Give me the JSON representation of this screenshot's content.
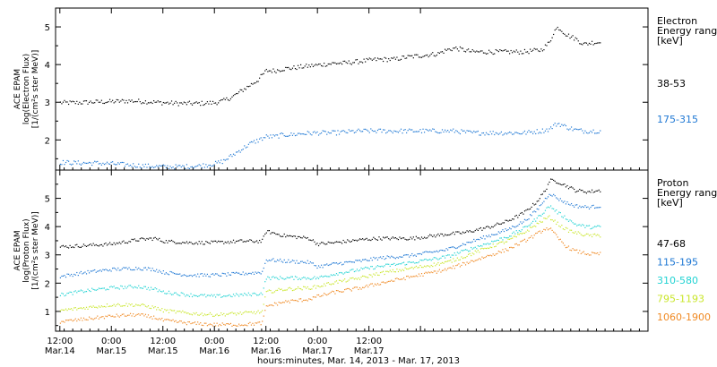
{
  "chart_data": [
    {
      "type": "scatter",
      "ylabel_lines": [
        "ACE EPAM",
        "log(Electron Flux)",
        "[1/(cm²s ster MeV)]"
      ],
      "ylim": [
        1.2,
        5.5
      ],
      "yticks": [
        2,
        3,
        4,
        5
      ],
      "legend": {
        "title_lines": [
          "Electron",
          "Energy range",
          "[keV]"
        ]
      },
      "series": [
        {
          "name": "38-53",
          "color": "#000000",
          "x_hours": [
            0,
            4,
            8,
            12,
            16,
            20,
            24,
            28,
            32,
            36,
            38,
            40,
            42,
            44,
            46,
            48,
            50,
            52,
            54,
            56,
            60,
            64,
            66,
            70,
            74,
            78,
            80,
            84,
            88,
            90,
            92,
            94,
            96,
            100,
            104,
            108,
            112,
            114,
            115,
            116,
            118,
            120,
            122,
            124,
            126
          ],
          "values": [
            3.0,
            3.0,
            3.02,
            3.03,
            3.05,
            3.03,
            3.0,
            2.98,
            2.98,
            3.0,
            3.05,
            3.15,
            3.3,
            3.45,
            3.6,
            3.85,
            3.85,
            3.9,
            3.92,
            3.95,
            4.0,
            4.05,
            4.05,
            4.1,
            4.15,
            4.15,
            4.2,
            4.25,
            4.3,
            4.4,
            4.45,
            4.4,
            4.35,
            4.35,
            4.35,
            4.35,
            4.4,
            4.6,
            4.9,
            5.0,
            4.8,
            4.7,
            4.55,
            4.6,
            4.6
          ]
        },
        {
          "name": "175-315",
          "color": "#1f78d4",
          "x_hours": [
            0,
            4,
            8,
            12,
            16,
            20,
            24,
            28,
            32,
            36,
            38,
            40,
            42,
            44,
            46,
            48,
            50,
            52,
            54,
            56,
            60,
            64,
            66,
            70,
            74,
            78,
            80,
            84,
            88,
            90,
            92,
            94,
            96,
            100,
            104,
            108,
            112,
            114,
            115,
            116,
            118,
            120,
            122,
            124,
            126
          ],
          "values": [
            1.42,
            1.4,
            1.4,
            1.38,
            1.35,
            1.32,
            1.3,
            1.3,
            1.32,
            1.38,
            1.45,
            1.6,
            1.75,
            1.9,
            2.0,
            2.1,
            2.1,
            2.15,
            2.15,
            2.18,
            2.2,
            2.2,
            2.22,
            2.25,
            2.25,
            2.25,
            2.25,
            2.25,
            2.25,
            2.25,
            2.25,
            2.22,
            2.2,
            2.2,
            2.2,
            2.2,
            2.25,
            2.3,
            2.4,
            2.45,
            2.35,
            2.28,
            2.25,
            2.25,
            2.25
          ]
        }
      ]
    },
    {
      "type": "scatter",
      "ylabel_lines": [
        "ACE EPAM",
        "log(Proton Flux)",
        "[1/(cm²s ster MeV)]"
      ],
      "ylim": [
        0.3,
        6.0
      ],
      "yticks": [
        1,
        2,
        3,
        4,
        5
      ],
      "legend": {
        "title_lines": [
          "Proton",
          "Energy range",
          "[keV]"
        ]
      },
      "series": [
        {
          "name": "47-68",
          "color": "#000000",
          "x_hours": [
            0,
            6,
            12,
            18,
            22,
            24,
            30,
            36,
            42,
            47,
            48,
            52,
            58,
            60,
            64,
            70,
            74,
            82,
            90,
            94,
            100,
            104,
            108,
            111,
            113,
            114,
            116,
            118,
            120,
            123,
            126
          ],
          "values": [
            3.3,
            3.35,
            3.4,
            3.55,
            3.6,
            3.5,
            3.45,
            3.45,
            3.5,
            3.5,
            3.85,
            3.7,
            3.6,
            3.4,
            3.45,
            3.55,
            3.6,
            3.6,
            3.75,
            3.8,
            4.0,
            4.2,
            4.5,
            4.9,
            5.3,
            5.65,
            5.6,
            5.45,
            5.3,
            5.25,
            5.3
          ]
        },
        {
          "name": "115-195",
          "color": "#1f78d4",
          "x_hours": [
            0,
            6,
            12,
            18,
            22,
            24,
            30,
            36,
            42,
            47,
            48,
            52,
            58,
            60,
            64,
            70,
            74,
            82,
            90,
            94,
            100,
            104,
            108,
            111,
            113,
            114,
            116,
            118,
            120,
            123,
            126
          ],
          "values": [
            2.25,
            2.4,
            2.5,
            2.55,
            2.5,
            2.4,
            2.3,
            2.3,
            2.35,
            2.4,
            2.85,
            2.8,
            2.75,
            2.6,
            2.7,
            2.8,
            2.9,
            3.0,
            3.2,
            3.4,
            3.7,
            3.9,
            4.2,
            4.6,
            5.0,
            5.2,
            5.0,
            4.85,
            4.75,
            4.7,
            4.75
          ]
        },
        {
          "name": "310-580",
          "color": "#22d3d3",
          "x_hours": [
            0,
            6,
            12,
            18,
            22,
            24,
            30,
            36,
            42,
            47,
            48,
            52,
            58,
            60,
            64,
            70,
            74,
            82,
            90,
            94,
            100,
            104,
            108,
            111,
            113,
            114,
            116,
            118,
            120,
            123,
            126
          ],
          "values": [
            1.6,
            1.75,
            1.85,
            1.9,
            1.8,
            1.7,
            1.6,
            1.55,
            1.6,
            1.65,
            2.2,
            2.2,
            2.2,
            2.2,
            2.35,
            2.5,
            2.6,
            2.75,
            2.95,
            3.15,
            3.45,
            3.65,
            3.95,
            4.3,
            4.6,
            4.75,
            4.5,
            4.3,
            4.1,
            4.0,
            4.0
          ]
        },
        {
          "name": "795-1193",
          "color": "#c9e62a",
          "x_hours": [
            0,
            6,
            12,
            18,
            22,
            24,
            30,
            36,
            42,
            47,
            48,
            52,
            58,
            60,
            64,
            70,
            74,
            82,
            90,
            94,
            100,
            104,
            108,
            111,
            113,
            114,
            116,
            118,
            120,
            123,
            126
          ],
          "values": [
            1.05,
            1.15,
            1.25,
            1.25,
            1.15,
            1.05,
            0.95,
            0.9,
            0.95,
            1.0,
            1.7,
            1.8,
            1.85,
            1.9,
            2.05,
            2.2,
            2.35,
            2.55,
            2.75,
            2.95,
            3.3,
            3.5,
            3.8,
            4.1,
            4.3,
            4.35,
            4.1,
            3.9,
            3.8,
            3.7,
            3.7
          ]
        },
        {
          "name": "1060-1900",
          "color": "#f08a24",
          "x_hours": [
            0,
            6,
            12,
            18,
            22,
            24,
            30,
            36,
            42,
            47,
            48,
            52,
            58,
            60,
            64,
            70,
            74,
            82,
            90,
            94,
            100,
            104,
            108,
            111,
            113,
            114,
            116,
            118,
            120,
            123,
            126
          ],
          "values": [
            0.65,
            0.75,
            0.85,
            0.9,
            0.8,
            0.7,
            0.6,
            0.55,
            0.55,
            0.6,
            1.2,
            1.35,
            1.45,
            1.55,
            1.7,
            1.85,
            2.0,
            2.25,
            2.5,
            2.7,
            3.0,
            3.2,
            3.5,
            3.75,
            3.95,
            3.95,
            3.6,
            3.3,
            3.15,
            3.05,
            3.05
          ]
        }
      ]
    }
  ],
  "x_axis": {
    "range_hours": [
      -1,
      137
    ],
    "ticks": [
      {
        "hour": 0,
        "time": "12:00",
        "date": "Mar.14"
      },
      {
        "hour": 12,
        "time": "0:00",
        "date": "Mar.15"
      },
      {
        "hour": 24,
        "time": "12:00",
        "date": "Mar.15"
      },
      {
        "hour": 36,
        "time": "0:00",
        "date": "Mar.16"
      },
      {
        "hour": 48,
        "time": "12:00",
        "date": "Mar.16"
      },
      {
        "hour": 60,
        "time": "0:00",
        "date": "Mar.17"
      },
      {
        "hour": 72,
        "time": "12:00",
        "date": "Mar.17"
      },
      {
        "hour": 84,
        "time": "",
        "date": ""
      }
    ],
    "label": "hours:minutes, Mar. 14, 2013 - Mar. 17, 2013"
  }
}
